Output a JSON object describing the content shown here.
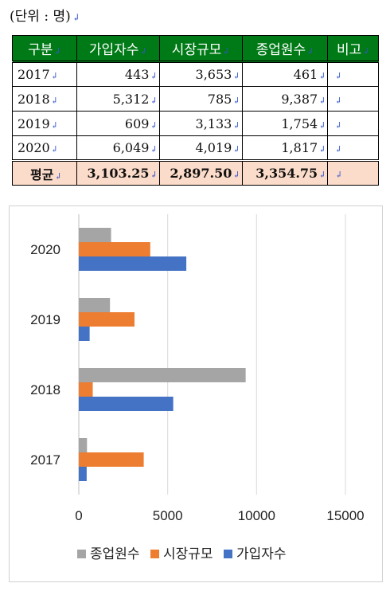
{
  "unit_label": "(단위 : 명)",
  "para_mark": "↲",
  "table": {
    "headers": [
      "구분",
      "가입자수",
      "시장규모",
      "종업원수",
      "비고"
    ],
    "rows": [
      {
        "year": "2017",
        "subscribers": "443",
        "market": "3,653",
        "employees": "461",
        "note": ""
      },
      {
        "year": "2018",
        "subscribers": "5,312",
        "market": "785",
        "employees": "9,387",
        "note": ""
      },
      {
        "year": "2019",
        "subscribers": "609",
        "market": "3,133",
        "employees": "1,754",
        "note": ""
      },
      {
        "year": "2020",
        "subscribers": "6,049",
        "market": "4,019",
        "employees": "1,817",
        "note": ""
      }
    ],
    "average": {
      "label": "평균",
      "subscribers": "3,103.25",
      "market": "2,897.50",
      "employees": "3,354.75",
      "note": ""
    }
  },
  "colors": {
    "header_bg": "#007a17",
    "average_bg": "#fbdbc9",
    "employees": "#a5a5a5",
    "market": "#ed7d31",
    "subscribers": "#4472c4"
  },
  "chart_data": {
    "type": "bar",
    "orientation": "horizontal",
    "categories": [
      "2017",
      "2018",
      "2019",
      "2020"
    ],
    "series": [
      {
        "name": "종업원수",
        "values": [
          461,
          9387,
          1754,
          1817
        ]
      },
      {
        "name": "시장규모",
        "values": [
          3653,
          785,
          3133,
          4019
        ]
      },
      {
        "name": "가입자수",
        "values": [
          443,
          5312,
          609,
          6049
        ]
      }
    ],
    "xlim": [
      0,
      15000
    ],
    "xticks": [
      "0",
      "5000",
      "10000",
      "15000"
    ],
    "grid": true,
    "legend": "bottom",
    "title": "",
    "xlabel": "",
    "ylabel": ""
  }
}
